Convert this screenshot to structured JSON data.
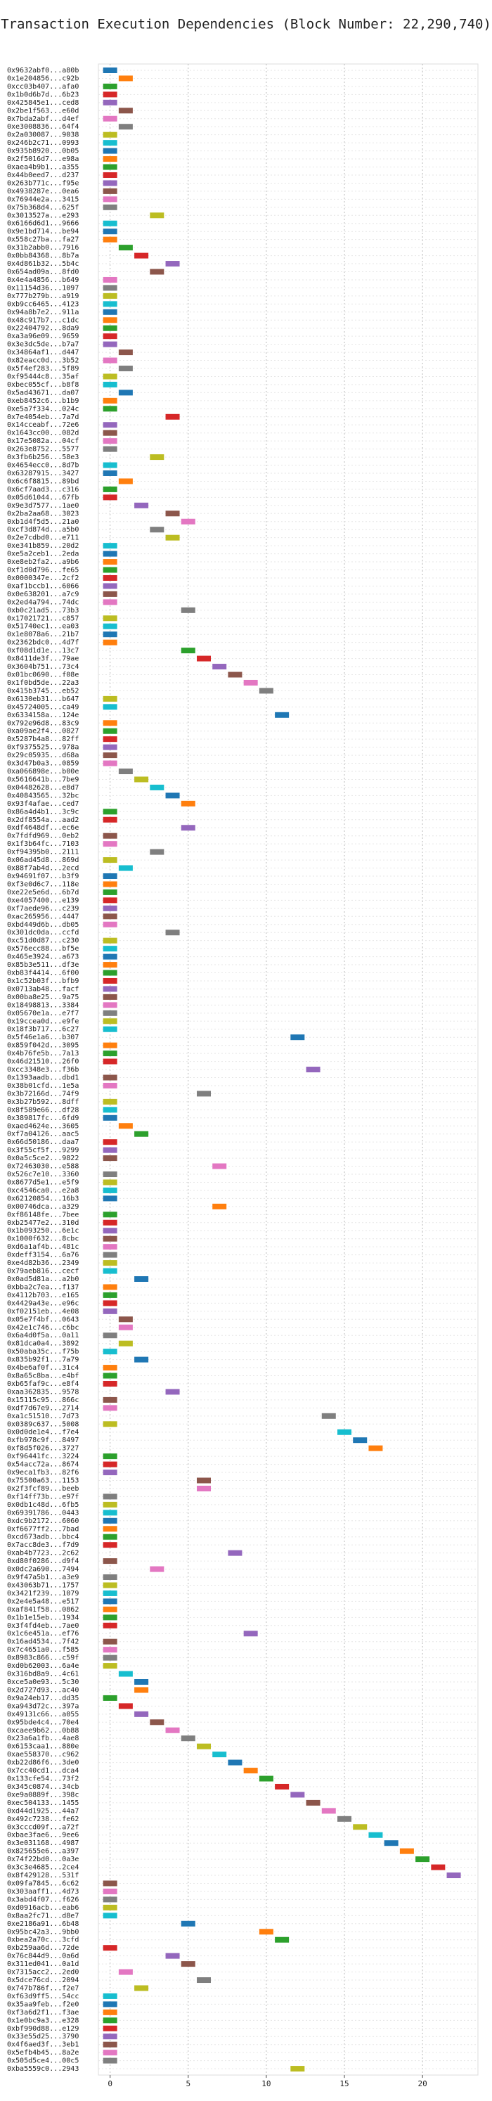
{
  "chart_data": {
    "type": "timeline",
    "title": "Transaction Execution Dependencies (Block Number: 22,290,740)",
    "palette": [
      "#1f77b4",
      "#ff7f0e",
      "#2ca02c",
      "#d62728",
      "#9467bd",
      "#8c564b",
      "#e377c2",
      "#7f7f7f",
      "#bcbd22",
      "#17becf"
    ],
    "categories": [
      "0x9632abf0...a80b",
      "0x1e204856...c92b",
      "0xcc03b407...afa0",
      "0x1b0d6b7d...6b23",
      "0x425845e1...ced8",
      "0x2be1f563...e60d",
      "0x7bda2abf...d4ef",
      "0xe3008836...64f4",
      "0x2a030087...9038",
      "0x246b2c71...0993",
      "0x935b8920...0b05",
      "0x2f5016d7...e98a",
      "0xaea4b9b1...a355",
      "0x44b0eed7...d237",
      "0x263b771c...f95e",
      "0x4938287e...0ea6",
      "0x76944e2a...3415",
      "0x75b368d4...625f",
      "0x3013527a...e293",
      "0x6166d6d1...9666",
      "0x9e1bd714...be94",
      "0x558c27ba...fa27",
      "0x31b2abb0...7916",
      "0x0bb84368...8b7a",
      "0x4d861b32...5b4c",
      "0x654ad09a...8fd0",
      "0x4e4a4856...b649",
      "0x11154d36...1097",
      "0x777b279b...a919",
      "0xb9cc6465...4123",
      "0x94a8b7e2...911a",
      "0x48c917b7...c1dc",
      "0x22404792...8da9",
      "0xa3a96e09...9659",
      "0x3e3dc5de...b7a7",
      "0x34864af1...d447",
      "0x82eacc0d...3b52",
      "0x5f4ef283...5f89",
      "0xf95444c8...35af",
      "0xbec055cf...b8f8",
      "0x5ad43671...da07",
      "0xeb8452c6...b1b9",
      "0xe5a7f334...024c",
      "0x7e4054eb...7a7d",
      "0x14cceabf...72e6",
      "0x1643cc00...082d",
      "0x17e5082a...04cf",
      "0x263e8752...5577",
      "0x3fb6b256...58e3",
      "0x4654ecc0...8d7b",
      "0x63287915...3427",
      "0x6c6f8815...89bd",
      "0x6cf7aad3...c316",
      "0x05d61044...67fb",
      "0x9e3d7577...1ae0",
      "0x2ba2aa68...3023",
      "0xb1d4f5d5...21a0",
      "0xcf3d874d...a5b0",
      "0x2e7cdbd0...e711",
      "0xe341b859...20d2",
      "0xe5a2ceb1...2eda",
      "0xe8eb2fa2...a9b6",
      "0xf1d0d796...fe65",
      "0x0000347e...2cf2",
      "0xaf1bccb1...6066",
      "0x0e638201...a7c9",
      "0x2ed4a794...74dc",
      "0xb0c21ad5...73b3",
      "0x17021721...c857",
      "0x51740ec1...ea03",
      "0x1e8078a6...21b7",
      "0x2362bdc0...4d7f",
      "0xf08d1d1e...13c7",
      "0x8411de3f...79ae",
      "0x3604b751...73c4",
      "0x01bc0690...f08e",
      "0x1f0bd5de...22a3",
      "0x415b3745...eb52",
      "0x6130eb31...b647",
      "0x45724005...ca49",
      "0x6334158a...124e",
      "0x792e96d8...83c9",
      "0xa09ae2f4...0827",
      "0x5287b4a8...82ff",
      "0xf9375525...978a",
      "0x29c05935...d68a",
      "0x3d47b0a3...0859",
      "0xa066898e...b00e",
      "0x5616641b...7be9",
      "0x04482628...e8d7",
      "0x40843565...32bc",
      "0x93f4afae...ced7",
      "0x86a4d4b1...3c9c",
      "0x2df8554a...aad2",
      "0xdf4648df...ec6e",
      "0x7fdfd969...0eb2",
      "0x1f3b64fc...7103",
      "0xf94395b0...2111",
      "0x06ad45d8...869d",
      "0x88f7ab4d...2ecd",
      "0x94691f07...b3f9",
      "0xf3e0d6c7...118e",
      "0xe22e5e6d...6b7d",
      "0xe4057400...e139",
      "0xf7aede96...c239",
      "0xac265956...4447",
      "0xbd449d6b...db05",
      "0x301dc0da...ccfd",
      "0xc51d0d87...c230",
      "0x576ecc88...bf5e",
      "0x465e3924...a673",
      "0x85b3e511...df3e",
      "0xb83f4414...6f00",
      "0x1c52b03f...bfb9",
      "0x0713ab48...facf",
      "0x00ba8e25...9a75",
      "0x18498813...3384",
      "0x05670e1a...e7f7",
      "0x19ccea0d...e9fe",
      "0x18f3b717...6c27",
      "0x5f46e1a6...b307",
      "0x859f042d...3095",
      "0x4b76fe5b...7a13",
      "0x46d21510...26f0",
      "0xcc3348e3...f36b",
      "0x1393aadb...dbd1",
      "0x38b01cfd...1e5a",
      "0x3b72166d...74f9",
      "0x3b27b592...8dff",
      "0x8f589e66...df28",
      "0x389817fc...6fd9",
      "0xaed4624e...3605",
      "0xf7a04126...aac5",
      "0x66d50186...daa7",
      "0x3f55cf5f...9299",
      "0x0a5c5ce2...9822",
      "0x72463030...e588",
      "0x526c7e10...3360",
      "0x8677d5e1...e5f9",
      "0xc4546ca0...e2a8",
      "0x62120854...16b3",
      "0x00746dca...a329",
      "0xf86148fe...7bee",
      "0xb25477e2...310d",
      "0x1b093250...6e1c",
      "0x1000f632...8cbc",
      "0xd6a1af4b...481c",
      "0xdeff3154...6a76",
      "0xe4d82b36...2349",
      "0x79aeb816...cecf",
      "0x0ad5d81a...a2b0",
      "0xbba2c7ea...f137",
      "0x4112b703...e165",
      "0x4429a43e...e96c",
      "0xf02151eb...4e08",
      "0x05e7f4bf...0643",
      "0x42e1c746...c6bc",
      "0x6a4d0f5a...0a11",
      "0x81dca0a4...3892",
      "0x50aba35c...f75b",
      "0x835b92f1...7a79",
      "0x4be6af0f...31c4",
      "0x8a65c8ba...e4bf",
      "0xb65faf9c...e8f4",
      "0xaa362835...9578",
      "0x15115c95...866c",
      "0xdf7d67e9...2714",
      "0xa1c51510...7d73",
      "0x0389c637...5008",
      "0x0d0de1e4...f7e4",
      "0xfb978c9f...8497",
      "0xf8d5f026...3727",
      "0xf96441fc...3224",
      "0x54acc72a...8674",
      "0x9eca1fb3...82f6",
      "0x75500a63...1153",
      "0x2f3fcf89...beeb",
      "0xf14ff73b...e97f",
      "0x0db1c48d...6fb5",
      "0x69391786...0443",
      "0xdc9b2172...6060",
      "0xf6677ff2...7bad",
      "0xcd673adb...bbc4",
      "0x7acc8de3...f7d9",
      "0xab4b7723...2c62",
      "0xd80f0286...d9f4",
      "0x0dc2a690...7494",
      "0x9f47a5b1...a3e9",
      "0x43063b71...1757",
      "0x3421f239...1079",
      "0x2e4e5a48...e517",
      "0xaf841f58...0862",
      "0x1b1e15eb...1934",
      "0x3f4fd4eb...7ae0",
      "0x1c6e451a...ef76",
      "0x16ad4534...7f42",
      "0x7c4651a0...f585",
      "0x8983c866...c59f",
      "0xd0b62003...6a4e",
      "0x316bd8a9...4c61",
      "0xce5a0e93...5c30",
      "0x2d727d93...ac40",
      "0x9a24eb17...dd35",
      "0xa943d72c...397a",
      "0x49131c66...a055",
      "0x95bde4c4...70e4",
      "0xcaee9b62...0b88",
      "0x23a6a1fb...4ae8",
      "0x6153caa1...880e",
      "0xae558370...c962",
      "0xb22d86f6...3de0",
      "0x7cc40cd1...dca4",
      "0x133cfe54...73f2",
      "0x345c0874...34cb",
      "0xe9a0889f...398c",
      "0xec504133...1455",
      "0xd44d1925...44a7",
      "0x492c7238...fe62",
      "0x3cccd09f...a72f",
      "0xbae3fae6...9ee6",
      "0x3e031168...4987",
      "0x825655e6...a397",
      "0x74f22bd0...0a3e",
      "0x3c3e4685...2ce4",
      "0x8f429128...531f",
      "0x09fa7845...6c62",
      "0x303aaff1...4d73",
      "0x3abd4f07...f626",
      "0xd0916acb...eab6",
      "0x8aa2fc71...d8e7",
      "0xe2186a91...6b48",
      "0x95bc42a3...9bb0",
      "0xbea2a70c...3cfd",
      "0xb259aa6d...72de",
      "0x76c844d9...0a6d",
      "0x311ed041...0a1d",
      "0x7315acc2...2ed0",
      "0x5dce76cd...2094",
      "0x747b786f...f2e7",
      "0xf63d9ff5...54cc",
      "0x35aa9feb...f2e0",
      "0xf3a6d2f1...f3ae",
      "0x1e0bc9a3...e328",
      "0xbf990d88...e129",
      "0x33e55d25...3790",
      "0x4f6aed3f...3eb1",
      "0x5efb4b45...8a2e",
      "0x505d5ce4...00c5",
      "0xba5559c0...2943"
    ],
    "values": [
      0,
      1,
      0,
      0,
      0,
      1,
      0,
      1,
      0,
      0,
      0,
      0,
      0,
      0,
      0,
      0,
      0,
      0,
      3,
      0,
      0,
      0,
      1,
      2,
      4,
      3,
      0,
      0,
      0,
      0,
      0,
      0,
      0,
      0,
      0,
      1,
      0,
      1,
      0,
      0,
      1,
      0,
      0,
      4,
      0,
      0,
      0,
      0,
      3,
      0,
      0,
      1,
      0,
      0,
      2,
      4,
      5,
      3,
      4,
      0,
      0,
      0,
      0,
      0,
      0,
      0,
      0,
      5,
      0,
      0,
      0,
      0,
      5,
      6,
      7,
      8,
      9,
      10,
      0,
      0,
      11,
      0,
      0,
      0,
      0,
      0,
      0,
      1,
      2,
      3,
      4,
      5,
      0,
      0,
      5,
      0,
      0,
      3,
      0,
      1,
      0,
      0,
      0,
      0,
      0,
      0,
      0,
      4,
      0,
      0,
      0,
      0,
      0,
      0,
      0,
      0,
      0,
      0,
      0,
      0,
      12,
      0,
      0,
      0,
      13,
      0,
      0,
      6,
      0,
      0,
      0,
      1,
      2,
      0,
      0,
      0,
      7,
      0,
      0,
      0,
      0,
      7,
      0,
      0,
      0,
      0,
      0,
      0,
      0,
      0,
      2,
      0,
      0,
      0,
      0,
      1,
      1,
      0,
      1,
      0,
      2,
      0,
      0,
      0,
      4,
      0,
      0,
      14,
      0,
      15,
      16,
      17,
      0,
      0,
      0,
      6,
      6,
      0,
      0,
      0,
      0,
      0,
      0,
      0,
      8,
      0,
      3,
      0,
      0,
      0,
      0,
      0,
      0,
      0,
      9,
      0,
      0,
      0,
      0,
      1,
      2,
      2,
      0,
      1,
      2,
      3,
      4,
      5,
      6,
      7,
      8,
      9,
      10,
      11,
      12,
      13,
      14,
      15,
      16,
      17,
      18,
      19,
      20,
      21,
      22,
      0,
      0,
      0,
      0,
      0,
      5,
      10,
      11,
      0,
      4,
      5,
      1,
      6,
      2,
      0,
      0,
      0,
      0,
      0,
      0,
      0,
      0,
      0,
      12
    ],
    "xlim": [
      -0.3,
      24
    ],
    "xticks": [
      0,
      5,
      10,
      15,
      20
    ],
    "grid": true
  }
}
